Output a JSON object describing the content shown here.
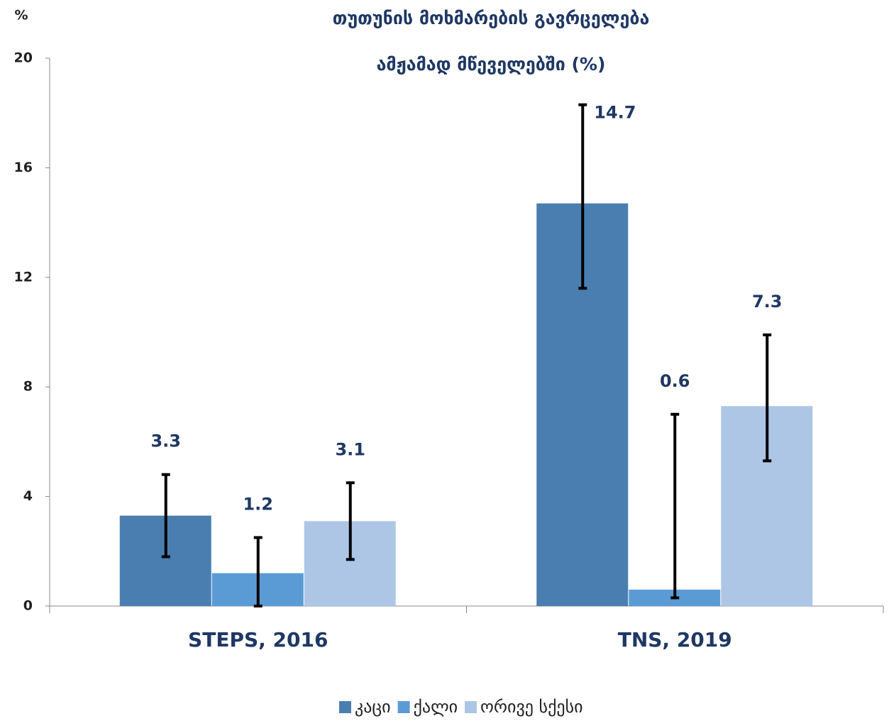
{
  "chart_data": {
    "type": "bar",
    "title": [
      "თუთუნის მოხმარების გავრცელება",
      "ამჟამად მწეველებში (%)"
    ],
    "y_unit": "%",
    "categories": [
      "STEPS, 2016",
      "TNS, 2019"
    ],
    "series": [
      {
        "name": "კაცი",
        "color": "#4a7eb0",
        "values": [
          3.3,
          14.7
        ],
        "error_lower": [
          1.8,
          11.6
        ],
        "error_upper": [
          4.8,
          18.3
        ]
      },
      {
        "name": "ქალი",
        "color": "#5b9bd5",
        "values": [
          1.2,
          0.6
        ],
        "error_lower": [
          0.0,
          0.3
        ],
        "error_upper": [
          2.5,
          7.0
        ]
      },
      {
        "name": "ორივე სქესი",
        "color": "#aec6e6",
        "values": [
          3.1,
          7.3
        ],
        "error_lower": [
          1.7,
          5.3
        ],
        "error_upper": [
          4.5,
          9.9
        ]
      }
    ],
    "ylim": [
      0,
      20
    ],
    "yticks": [
      0,
      4,
      8,
      12,
      16,
      20
    ],
    "grid": false,
    "legend": "bottom"
  }
}
